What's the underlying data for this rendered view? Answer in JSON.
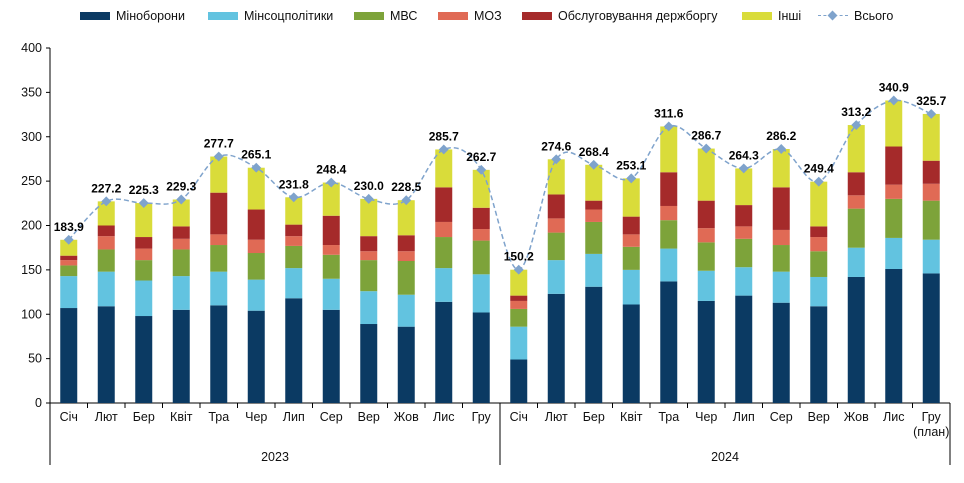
{
  "chart_data": {
    "type": "bar",
    "stacked": true,
    "categories": [
      "Січ",
      "Лют",
      "Бер",
      "Квіт",
      "Тра",
      "Чер",
      "Лип",
      "Сер",
      "Вер",
      "Жов",
      "Лис",
      "Гру",
      "Січ",
      "Лют",
      "Бер",
      "Квіт",
      "Тра",
      "Чер",
      "Лип",
      "Сер",
      "Вер",
      "Жов",
      "Лис",
      "Гру"
    ],
    "last_category_note": "(план)",
    "groups": [
      {
        "label": "2023",
        "start": 0,
        "end": 11
      },
      {
        "label": "2024",
        "start": 12,
        "end": 23
      }
    ],
    "ylim": [
      0,
      400
    ],
    "yticks": [
      0,
      50,
      100,
      150,
      200,
      250,
      300,
      350,
      400
    ],
    "legend_position": "top",
    "series": [
      {
        "name": "Міноборони",
        "color": "#0b3a63",
        "values": [
          107,
          109,
          98,
          105,
          110,
          104,
          118,
          105,
          89,
          86,
          114,
          102,
          49,
          123,
          131,
          111,
          137,
          115,
          121,
          113,
          109,
          142,
          151,
          146
        ]
      },
      {
        "name": "Мінсоцполітики",
        "color": "#62c3e0",
        "values": [
          36,
          39,
          40,
          38,
          38,
          35,
          34,
          35,
          37,
          36,
          38,
          43,
          37,
          38,
          37,
          39,
          37,
          34,
          32,
          35,
          33,
          33,
          35,
          38
        ]
      },
      {
        "name": "МВС",
        "color": "#7da33a",
        "values": [
          12,
          25,
          23,
          30,
          30,
          30,
          25,
          27,
          35,
          38,
          35,
          38,
          20,
          31,
          36,
          26,
          32,
          32,
          32,
          30,
          29,
          44,
          44,
          44
        ]
      },
      {
        "name": "МОЗ",
        "color": "#e06a55",
        "values": [
          6,
          15,
          13,
          12,
          12,
          15,
          11,
          11,
          10,
          11,
          17,
          13,
          9,
          16,
          14,
          14,
          16,
          16,
          14,
          17,
          16,
          15,
          16,
          19
        ]
      },
      {
        "name": "Обслуговування держборгу",
        "color": "#a52a2a",
        "values": [
          5,
          12,
          13,
          14,
          47,
          34,
          13,
          33,
          17,
          18,
          39,
          24,
          6,
          27,
          10,
          20,
          38,
          31,
          24,
          48,
          12,
          26,
          43,
          26
        ]
      },
      {
        "name": "Інші",
        "color": "#d9dc3a",
        "values": [
          17.9,
          27.2,
          38.3,
          30.3,
          40.7,
          47.1,
          30.8,
          37.4,
          42.0,
          39.5,
          42.7,
          42.7,
          29.2,
          39.6,
          40.4,
          43.1,
          51.6,
          58.7,
          41.3,
          43.2,
          50.4,
          53.2,
          51.9,
          52.7
        ]
      }
    ],
    "total": {
      "name": "Всього",
      "color": "#7fa3cc",
      "values": [
        183.9,
        227.2,
        225.3,
        229.3,
        277.7,
        265.1,
        231.8,
        248.4,
        230.0,
        228.5,
        285.7,
        262.7,
        150.2,
        274.6,
        268.4,
        253.1,
        311.6,
        286.7,
        264.3,
        286.2,
        249.4,
        313.2,
        340.9,
        325.7
      ],
      "labels": [
        "183.9",
        "227.2",
        "225.3",
        "229.3",
        "277.7",
        "265.1",
        "231.8",
        "248.4",
        "230.0",
        "228.5",
        "285.7",
        "262.7",
        "150.2",
        "274.6",
        "268.4",
        "253.1",
        "311.6",
        "286.7",
        "264.3",
        "286.2",
        "249.4",
        "313.2",
        "340.9",
        "325.7"
      ]
    },
    "grid": false
  }
}
